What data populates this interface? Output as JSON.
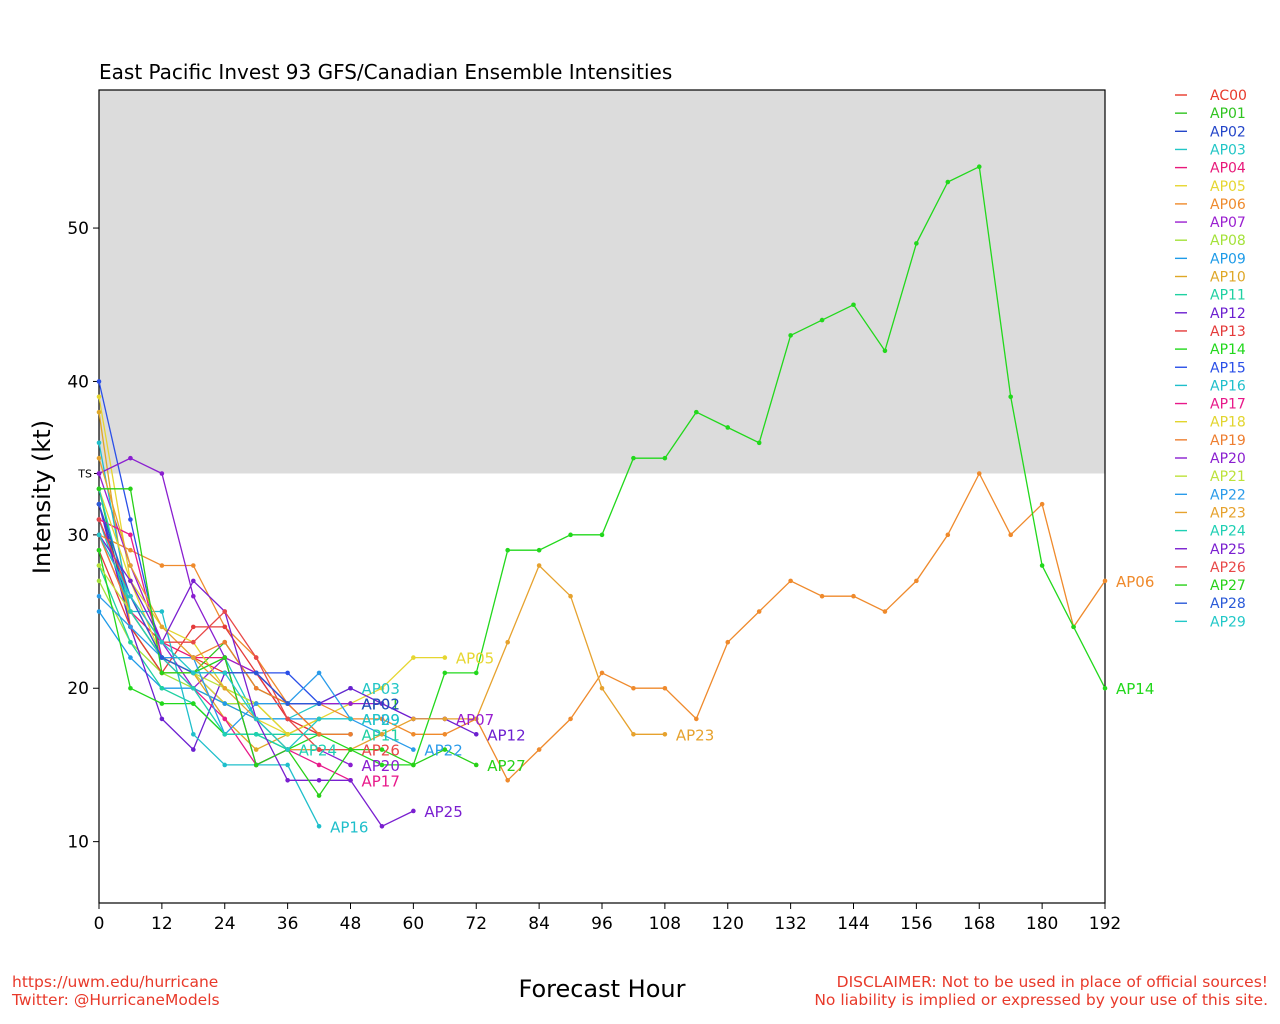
{
  "chart_data": {
    "type": "line",
    "title": "East Pacific Invest 93 GFS/Canadian Ensemble Intensities",
    "xlabel": "Forecast Hour",
    "ylabel": "Intensity (kt)",
    "xlim": [
      0,
      192
    ],
    "ylim": [
      6,
      59
    ],
    "xticks": [
      0,
      12,
      24,
      36,
      48,
      60,
      72,
      84,
      96,
      108,
      120,
      132,
      144,
      156,
      168,
      180,
      192
    ],
    "yticks": [
      10,
      20,
      30,
      40,
      50
    ],
    "shade_above": 34,
    "shade_label": "TS",
    "shade_color": "#dcdcdc",
    "legend_position": "right",
    "series": [
      {
        "name": "AC00",
        "color": "#e8392a",
        "x": [
          0,
          6,
          12,
          18,
          24,
          30,
          36,
          42
        ],
        "y": [
          31,
          26,
          22,
          22,
          21,
          21,
          19,
          17
        ],
        "label": false
      },
      {
        "name": "AP01",
        "color": "#2fc41f",
        "x": [
          0,
          6,
          12,
          18,
          24,
          30,
          36,
          42,
          48
        ],
        "y": [
          33,
          24,
          21,
          21,
          23,
          20,
          19,
          19,
          19
        ],
        "label": true
      },
      {
        "name": "AP02",
        "color": "#2446c9",
        "x": [
          0,
          6,
          12,
          18,
          24,
          30,
          36,
          42,
          48
        ],
        "y": [
          32,
          25,
          22,
          21,
          19,
          19,
          19,
          19,
          19
        ],
        "label": true
      },
      {
        "name": "AP03",
        "color": "#22c6c6",
        "x": [
          0,
          6,
          12,
          18,
          24,
          30,
          36,
          42,
          48
        ],
        "y": [
          31,
          25,
          22,
          21,
          22,
          18,
          18,
          19,
          20
        ],
        "label": true
      },
      {
        "name": "AP04",
        "color": "#e8197a",
        "x": [
          0,
          6,
          12,
          18,
          24,
          30,
          36,
          42,
          48
        ],
        "y": [
          30,
          25,
          23,
          22,
          22,
          21,
          18,
          17,
          17
        ],
        "label": false
      },
      {
        "name": "AP05",
        "color": "#e6d630",
        "x": [
          0,
          6,
          12,
          18,
          24,
          30,
          36,
          42,
          48,
          54,
          60,
          66
        ],
        "y": [
          39,
          27,
          22,
          21,
          19,
          18,
          17,
          18,
          19,
          20,
          22,
          22
        ],
        "label": true
      },
      {
        "name": "AP06",
        "color": "#ef8a2c",
        "x": [
          0,
          6,
          12,
          18,
          24,
          30,
          36,
          42,
          48,
          54,
          60,
          66,
          72,
          78,
          84,
          90,
          96,
          102,
          108,
          114,
          120,
          126,
          132,
          138,
          144,
          150,
          156,
          162,
          168,
          174,
          180,
          186,
          192
        ],
        "y": [
          30,
          29,
          28,
          28,
          24,
          22,
          19,
          19,
          18,
          18,
          17,
          17,
          18,
          14,
          16,
          18,
          21,
          20,
          20,
          18,
          23,
          25,
          27,
          26,
          26,
          25,
          27,
          30,
          34,
          30,
          32,
          24,
          27
        ],
        "label": true
      },
      {
        "name": "AP07",
        "color": "#9a1fd0",
        "x": [
          0,
          6,
          12,
          18,
          24,
          30,
          36,
          42,
          48,
          54,
          60,
          66
        ],
        "y": [
          34,
          28,
          23,
          20,
          22,
          21,
          19,
          19,
          19,
          19,
          18,
          18
        ],
        "label": true
      },
      {
        "name": "AP08",
        "color": "#a4e23a",
        "x": [
          0,
          6,
          12,
          18,
          24,
          30,
          36
        ],
        "y": [
          27,
          23,
          21,
          20,
          19,
          19,
          17
        ],
        "label": false
      },
      {
        "name": "AP09",
        "color": "#1e9be8",
        "x": [
          0,
          6,
          12,
          18,
          24,
          30,
          36,
          42,
          48
        ],
        "y": [
          25,
          22,
          20,
          20,
          19,
          18,
          18,
          18,
          18
        ],
        "label": true
      },
      {
        "name": "AP10",
        "color": "#dfa727",
        "x": [
          0,
          6,
          12,
          18,
          24,
          30,
          36,
          42
        ],
        "y": [
          38,
          24,
          21,
          21,
          18,
          16,
          17,
          18
        ],
        "label": false
      },
      {
        "name": "AP11",
        "color": "#1fd1a2",
        "x": [
          0,
          6,
          12,
          18,
          24,
          30,
          36,
          42,
          48
        ],
        "y": [
          28,
          23,
          20,
          19,
          17,
          17,
          17,
          17,
          17
        ],
        "label": true
      },
      {
        "name": "AP12",
        "color": "#6c1fd0",
        "x": [
          0,
          6,
          12,
          18,
          24,
          30,
          36,
          42,
          48,
          54,
          60,
          66,
          72
        ],
        "y": [
          32,
          24,
          18,
          16,
          21,
          21,
          19,
          19,
          20,
          19,
          18,
          18,
          17
        ],
        "label": true
      },
      {
        "name": "AP13",
        "color": "#e43a3a",
        "x": [
          0,
          6,
          12,
          18,
          24,
          30,
          36,
          42
        ],
        "y": [
          29,
          24,
          21,
          24,
          24,
          21,
          18,
          17
        ],
        "label": false
      },
      {
        "name": "AP14",
        "color": "#22d81c",
        "x": [
          0,
          6,
          12,
          18,
          24,
          30,
          36,
          42,
          48,
          54,
          60,
          66,
          72,
          78,
          84,
          90,
          96,
          102,
          108,
          114,
          120,
          126,
          132,
          138,
          144,
          150,
          156,
          162,
          168,
          174,
          180,
          186,
          192
        ],
        "y": [
          29,
          20,
          19,
          19,
          17,
          17,
          16,
          17,
          16,
          15,
          15,
          21,
          21,
          29,
          29,
          30,
          30,
          35,
          35,
          38,
          37,
          36,
          43,
          44,
          45,
          42,
          49,
          53,
          54,
          39,
          28,
          24,
          20
        ],
        "label": true
      },
      {
        "name": "AP15",
        "color": "#2a4fe8",
        "x": [
          0,
          6,
          12,
          18,
          24,
          30,
          36,
          42
        ],
        "y": [
          40,
          31,
          22,
          21,
          21,
          21,
          21,
          19
        ],
        "label": false
      },
      {
        "name": "AP16",
        "color": "#1fbfcb",
        "x": [
          0,
          6,
          12,
          18,
          24,
          30,
          36,
          42
        ],
        "y": [
          36,
          25,
          25,
          17,
          15,
          15,
          15,
          11
        ],
        "label": true
      },
      {
        "name": "AP17",
        "color": "#e8198a",
        "x": [
          0,
          6,
          12,
          18,
          24,
          30,
          36,
          42,
          48
        ],
        "y": [
          31,
          30,
          22,
          20,
          18,
          15,
          16,
          15,
          14
        ],
        "label": true
      },
      {
        "name": "AP18",
        "color": "#e2d52e",
        "x": [
          0,
          6,
          12,
          18,
          24,
          30,
          36,
          42
        ],
        "y": [
          33,
          27,
          24,
          23,
          20,
          19,
          17,
          18
        ],
        "label": false
      },
      {
        "name": "AP19",
        "color": "#ee7e30",
        "x": [
          0,
          6,
          12,
          18,
          24,
          30,
          36,
          42,
          48
        ],
        "y": [
          30,
          25,
          22,
          22,
          23,
          20,
          19,
          17,
          17
        ],
        "label": false
      },
      {
        "name": "AP20",
        "color": "#8a1fd0",
        "x": [
          0,
          6,
          12,
          18,
          24,
          30,
          36,
          42,
          48
        ],
        "y": [
          34,
          35,
          34,
          26,
          22,
          15,
          16,
          16,
          15
        ],
        "label": true
      },
      {
        "name": "AP21",
        "color": "#bde23a",
        "x": [
          0,
          6,
          12,
          18,
          24,
          30,
          36
        ],
        "y": [
          28,
          25,
          22,
          21,
          20,
          19,
          19
        ],
        "label": false
      },
      {
        "name": "AP22",
        "color": "#2a9bea",
        "x": [
          0,
          6,
          12,
          18,
          24,
          30,
          36,
          42,
          48,
          54,
          60
        ],
        "y": [
          26,
          24,
          22,
          22,
          17,
          19,
          19,
          21,
          18,
          17,
          16
        ],
        "label": true
      },
      {
        "name": "AP23",
        "color": "#e6a22e",
        "x": [
          0,
          6,
          12,
          18,
          24,
          30,
          36,
          42,
          48,
          54,
          60,
          66,
          72,
          78,
          84,
          90,
          96,
          102,
          108
        ],
        "y": [
          35,
          28,
          24,
          22,
          20,
          18,
          16,
          16,
          16,
          17,
          18,
          18,
          18,
          23,
          28,
          26,
          20,
          17,
          17
        ],
        "label": true
      },
      {
        "name": "AP24",
        "color": "#1fd0b4",
        "x": [
          0,
          6,
          12,
          18,
          24,
          30,
          36
        ],
        "y": [
          33,
          25,
          22,
          20,
          17,
          17,
          16
        ],
        "label": true
      },
      {
        "name": "AP25",
        "color": "#7a1fd0",
        "x": [
          0,
          6,
          12,
          18,
          24,
          30,
          36,
          42,
          48,
          54,
          60
        ],
        "y": [
          30,
          27,
          23,
          27,
          25,
          18,
          14,
          14,
          14,
          11,
          12
        ],
        "label": true
      },
      {
        "name": "AP26",
        "color": "#e84848",
        "x": [
          0,
          6,
          12,
          18,
          24,
          30,
          36,
          42,
          48
        ],
        "y": [
          31,
          26,
          23,
          23,
          25,
          22,
          18,
          16,
          16
        ],
        "label": true
      },
      {
        "name": "AP27",
        "color": "#28d118",
        "x": [
          0,
          6,
          12,
          18,
          24,
          30,
          36,
          42,
          48,
          54,
          60,
          66,
          72
        ],
        "y": [
          33,
          33,
          21,
          21,
          22,
          15,
          16,
          13,
          16,
          16,
          15,
          16,
          15
        ],
        "label": true
      },
      {
        "name": "AP28",
        "color": "#2a5ad8",
        "x": [
          0,
          6,
          12,
          18,
          24,
          30,
          36,
          42
        ],
        "y": [
          32,
          26,
          22,
          21,
          21,
          21,
          19,
          19
        ],
        "label": false
      },
      {
        "name": "AP29",
        "color": "#22c8c8",
        "x": [
          0,
          6,
          12,
          18,
          24,
          30,
          36,
          42,
          48
        ],
        "y": [
          30,
          26,
          23,
          21,
          21,
          18,
          16,
          18,
          18
        ],
        "label": true
      }
    ]
  },
  "footer": {
    "url": "https://uwm.edu/hurricane",
    "twitter": "Twitter: @HurricaneModels",
    "disclaimer_line1": "DISCLAIMER: Not to be used in place of official sources!",
    "disclaimer_line2": "No liability is implied or expressed by your use of this site."
  }
}
